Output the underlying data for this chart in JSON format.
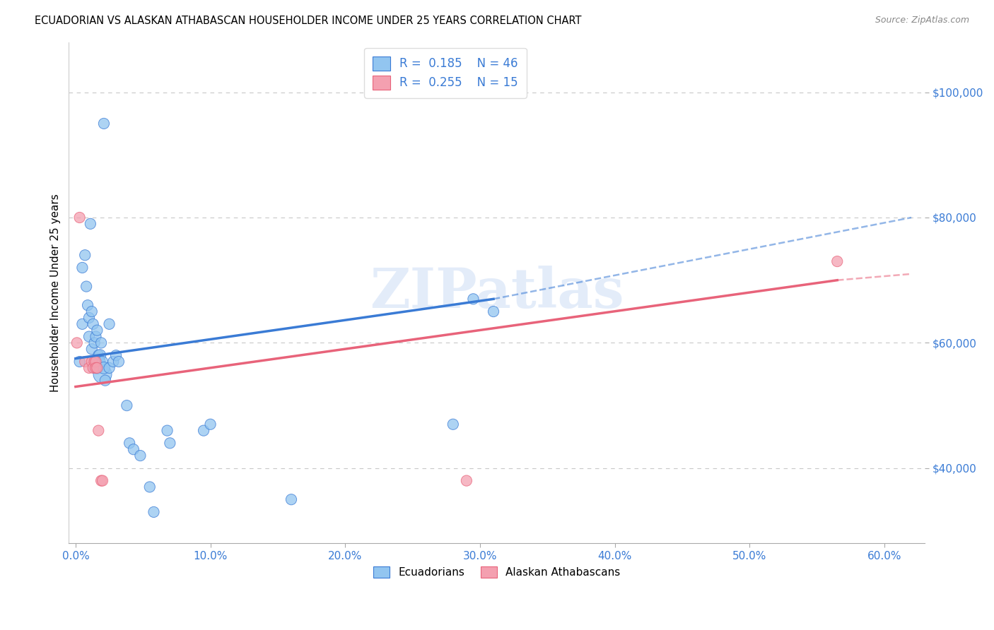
{
  "title": "ECUADORIAN VS ALASKAN ATHABASCAN HOUSEHOLDER INCOME UNDER 25 YEARS CORRELATION CHART",
  "source": "Source: ZipAtlas.com",
  "xlabel_ticks": [
    "0.0%",
    "10.0%",
    "20.0%",
    "30.0%",
    "40.0%",
    "50.0%",
    "60.0%"
  ],
  "xlabel_vals": [
    0.0,
    0.1,
    0.2,
    0.3,
    0.4,
    0.5,
    0.6
  ],
  "ylabel_ticks": [
    "$40,000",
    "$60,000",
    "$80,000",
    "$100,000"
  ],
  "ylabel_vals": [
    40000,
    60000,
    80000,
    100000
  ],
  "ylabel_label": "Householder Income Under 25 years",
  "xlim": [
    -0.005,
    0.63
  ],
  "ylim": [
    28000,
    108000
  ],
  "blue_color": "#92C5F0",
  "pink_color": "#F4A0B0",
  "trendline_blue_color": "#3A7BD5",
  "trendline_pink_color": "#E8637A",
  "watermark": "ZIPatlas",
  "ecuadorians_x": [
    0.021,
    0.003,
    0.005,
    0.005,
    0.007,
    0.008,
    0.009,
    0.01,
    0.01,
    0.011,
    0.012,
    0.012,
    0.013,
    0.014,
    0.014,
    0.015,
    0.015,
    0.016,
    0.016,
    0.017,
    0.018,
    0.018,
    0.019,
    0.02,
    0.02,
    0.021,
    0.022,
    0.025,
    0.025,
    0.028,
    0.03,
    0.032,
    0.038,
    0.04,
    0.043,
    0.048,
    0.055,
    0.058,
    0.068,
    0.07,
    0.095,
    0.1,
    0.16,
    0.28,
    0.295,
    0.31
  ],
  "ecuadorians_y": [
    95000,
    57000,
    72000,
    63000,
    74000,
    69000,
    66000,
    64000,
    61000,
    79000,
    65000,
    59000,
    63000,
    56000,
    60000,
    57000,
    61000,
    56000,
    62000,
    58000,
    58000,
    57000,
    60000,
    55000,
    57000,
    56000,
    54000,
    63000,
    56000,
    57000,
    58000,
    57000,
    50000,
    44000,
    43000,
    42000,
    37000,
    33000,
    46000,
    44000,
    46000,
    47000,
    35000,
    47000,
    67000,
    65000
  ],
  "ecuadorians_size": [
    120,
    120,
    120,
    120,
    120,
    120,
    120,
    120,
    120,
    120,
    120,
    120,
    120,
    120,
    120,
    120,
    120,
    150,
    120,
    120,
    150,
    120,
    120,
    350,
    120,
    150,
    120,
    120,
    120,
    120,
    120,
    120,
    120,
    120,
    120,
    120,
    120,
    120,
    120,
    120,
    120,
    120,
    120,
    120,
    120,
    120
  ],
  "alaskan_x": [
    0.001,
    0.003,
    0.007,
    0.01,
    0.012,
    0.013,
    0.014,
    0.015,
    0.015,
    0.016,
    0.017,
    0.019,
    0.02,
    0.29,
    0.565
  ],
  "alaskan_y": [
    60000,
    80000,
    57000,
    56000,
    57000,
    56000,
    57000,
    57000,
    56000,
    56000,
    46000,
    38000,
    38000,
    38000,
    73000
  ],
  "alaskan_size": [
    120,
    120,
    120,
    120,
    120,
    120,
    120,
    120,
    120,
    120,
    120,
    120,
    120,
    120,
    120
  ],
  "trendline_blue_x0": 0.0,
  "trendline_blue_y0": 57500,
  "trendline_blue_x1": 0.31,
  "trendline_blue_y1": 67000,
  "trendline_blue_dash_x1": 0.62,
  "trendline_blue_dash_y1": 80000,
  "trendline_pink_x0": 0.0,
  "trendline_pink_y0": 53000,
  "trendline_pink_x1": 0.565,
  "trendline_pink_y1": 70000,
  "trendline_pink_dash_x1": 0.62,
  "trendline_pink_dash_y1": 71000
}
